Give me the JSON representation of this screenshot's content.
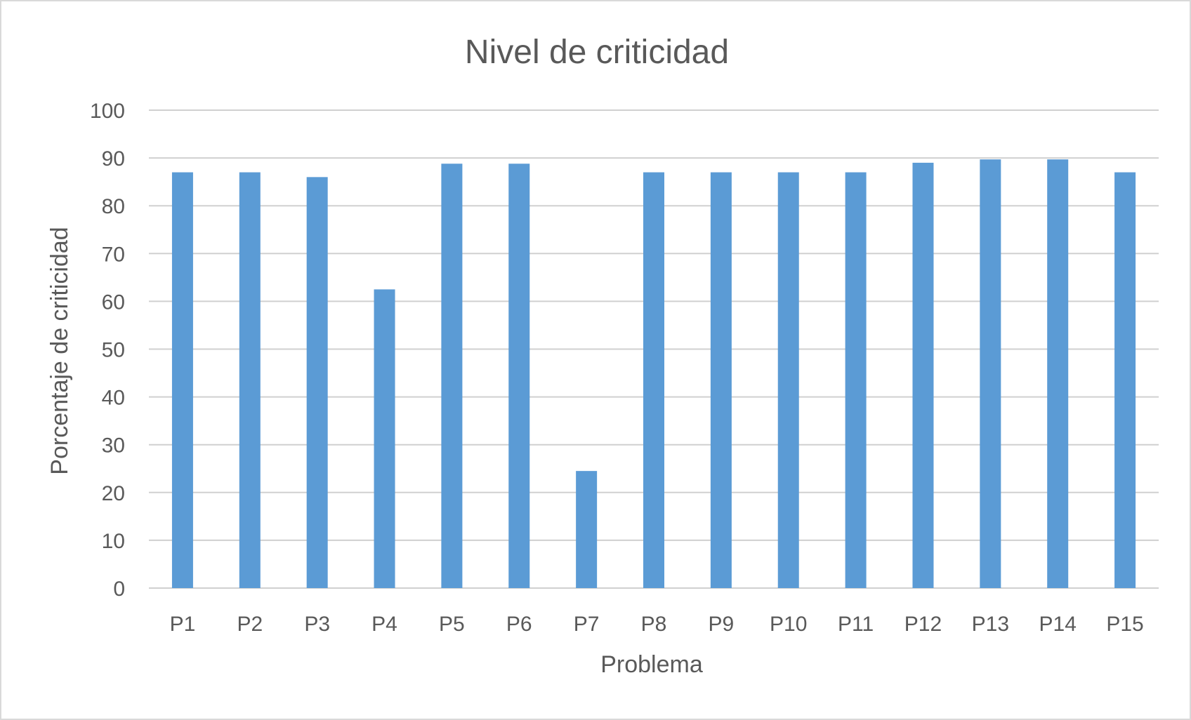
{
  "chart_data": {
    "type": "bar",
    "title": "Nivel de criticidad",
    "xlabel": "Problema",
    "ylabel": "Porcentaje de criticidad",
    "categories": [
      "P1",
      "P2",
      "P3",
      "P4",
      "P5",
      "P6",
      "P7",
      "P8",
      "P9",
      "P10",
      "P11",
      "P12",
      "P13",
      "P14",
      "P15"
    ],
    "values": [
      87,
      87,
      86,
      62.5,
      88.8,
      88.8,
      24.5,
      87,
      87,
      87,
      87,
      89,
      89.7,
      89.7,
      87
    ],
    "ylim": [
      0,
      100
    ],
    "yticks": [
      "0",
      "10",
      "20",
      "30",
      "40",
      "50",
      "60",
      "70",
      "80",
      "90",
      "100"
    ],
    "grid": true,
    "legend": "none",
    "bar_color": "#5b9bd5"
  }
}
